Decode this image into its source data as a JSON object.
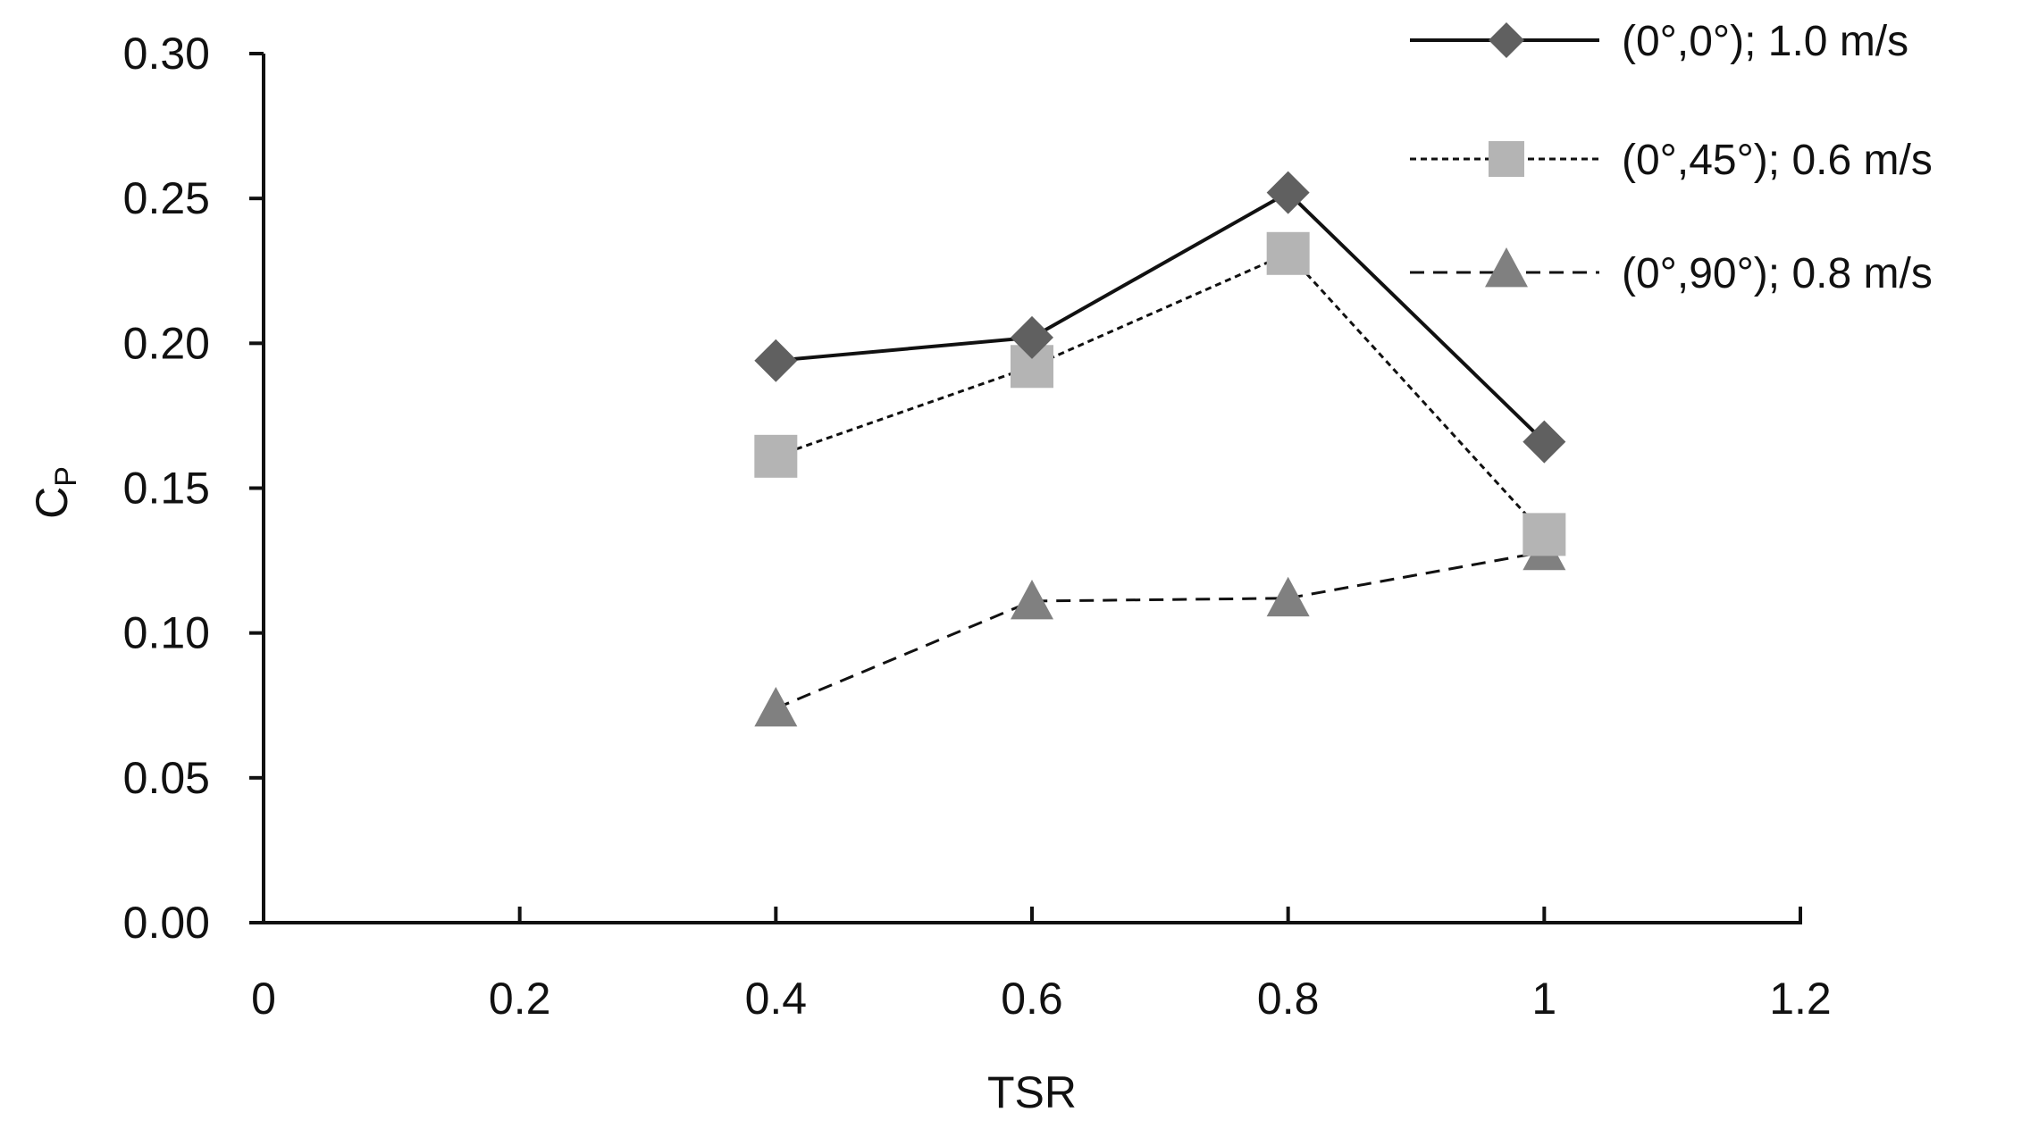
{
  "chart_data": {
    "type": "line",
    "title": "",
    "xlabel": "TSR",
    "ylabel_main": "C",
    "ylabel_sub": "P",
    "xlim": [
      0,
      1.2
    ],
    "ylim": [
      0,
      0.3
    ],
    "x_ticks": [
      0,
      0.2,
      0.4,
      0.6,
      0.8,
      1.0,
      1.2
    ],
    "x_tick_labels": [
      "0",
      "0.2",
      "0.4",
      "0.6",
      "0.8",
      "1",
      "1.2"
    ],
    "y_ticks": [
      0,
      0.05,
      0.1,
      0.15,
      0.2,
      0.25,
      0.3
    ],
    "y_tick_labels": [
      "0.00",
      "0.05",
      "0.10",
      "0.15",
      "0.20",
      "0.25",
      "0.30"
    ],
    "grid": false,
    "legend_position": "top-right",
    "series": [
      {
        "name": "(0°,0°); 1.0 m/s",
        "marker": "diamond",
        "line_style": "solid",
        "color": "#606060",
        "x": [
          0.4,
          0.6,
          0.8,
          1.0
        ],
        "values": [
          0.194,
          0.202,
          0.252,
          0.166
        ]
      },
      {
        "name": "(0°,45°); 0.6 m/s",
        "marker": "square",
        "line_style": "dotted",
        "color": "#b4b4b4",
        "x": [
          0.4,
          0.6,
          0.8,
          1.0
        ],
        "values": [
          0.161,
          0.192,
          0.231,
          0.134
        ]
      },
      {
        "name": "(0°,90°); 0.8 m/s",
        "marker": "triangle",
        "line_style": "dashed",
        "color": "#808080",
        "x": [
          0.4,
          0.6,
          0.8,
          1.0
        ],
        "values": [
          0.074,
          0.111,
          0.112,
          0.128
        ]
      }
    ]
  }
}
